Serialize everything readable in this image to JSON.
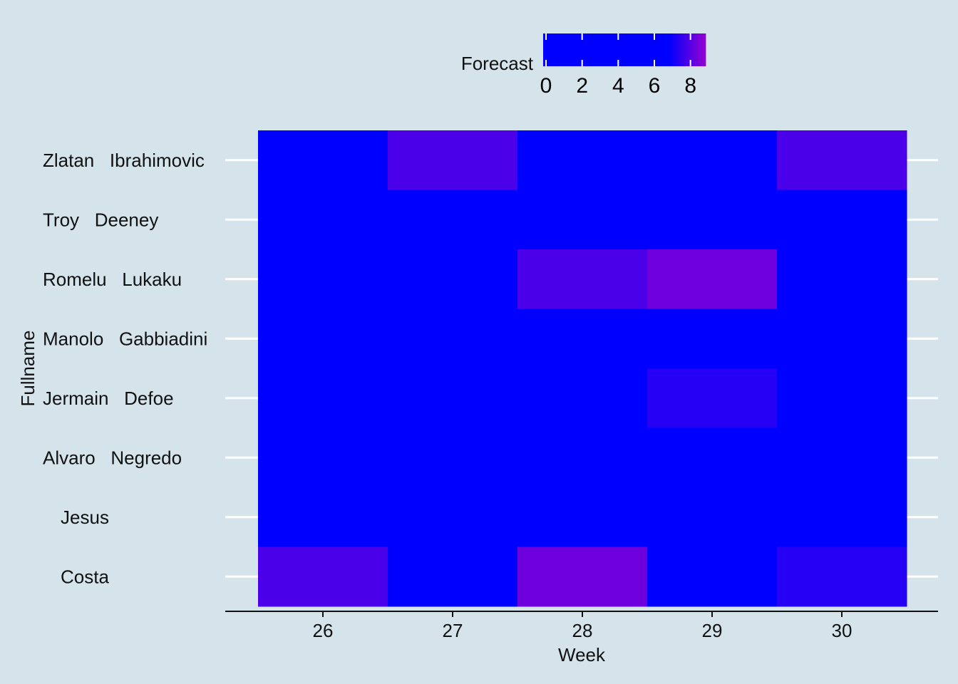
{
  "chart_data": {
    "type": "heatmap",
    "title": "",
    "xlabel": "Week",
    "ylabel": "Fullname",
    "x": [
      "26",
      "27",
      "28",
      "29",
      "30"
    ],
    "y": [
      "Zlatan   Ibrahimovic",
      "Troy   Deeney",
      "Romelu   Lukaku",
      "Manolo   Gabbiadini",
      "Jermain   Defoe",
      "Alvaro   Negredo",
      "Jesus",
      "Costa"
    ],
    "values": [
      [
        0,
        8,
        5,
        4,
        8
      ],
      [
        0,
        0,
        0,
        0,
        0
      ],
      [
        0,
        0,
        8,
        8.5,
        0
      ],
      [
        0,
        0,
        0,
        0,
        0
      ],
      [
        0,
        5.5,
        0,
        7.5,
        0
      ],
      [
        0,
        0,
        0,
        0,
        0
      ],
      [
        0,
        0,
        0,
        0,
        0
      ],
      [
        8,
        4.5,
        8.5,
        0,
        7.5
      ]
    ],
    "legend": {
      "title": "Forecast",
      "position": "top",
      "range": [
        0,
        9
      ],
      "ticks": [
        "0",
        "2",
        "4",
        "6",
        "8"
      ]
    },
    "colors": {
      "low": "#0000ff",
      "high": "#9400d3",
      "blend_start": 7,
      "background": "#d5e4eb",
      "gridline": "#ffffff"
    }
  }
}
